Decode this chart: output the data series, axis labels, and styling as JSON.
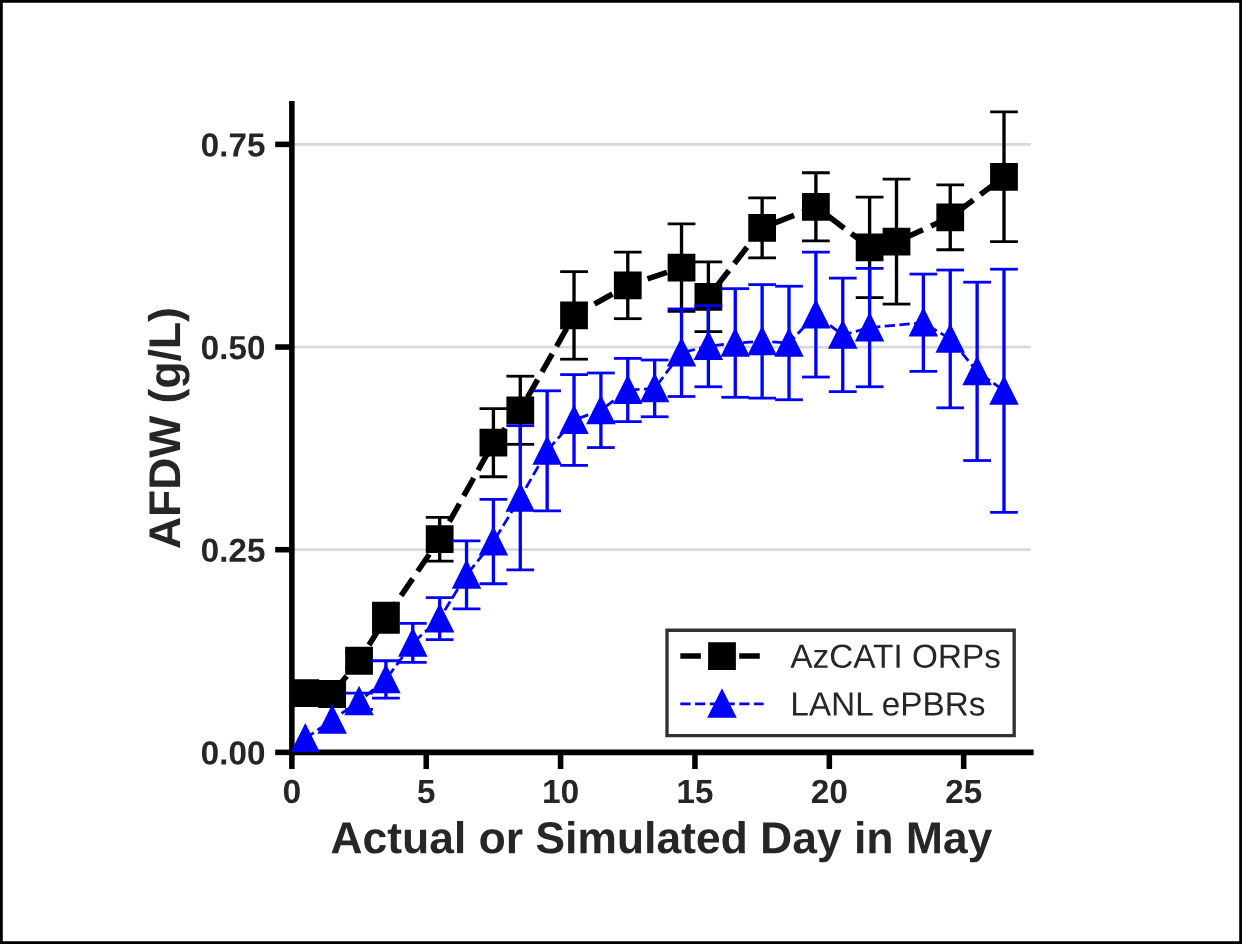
{
  "chart_data": {
    "type": "line",
    "xlabel": "Actual or Simulated Day in May",
    "ylabel": "AFDW (g/L)",
    "xlim": [
      0,
      27.5
    ],
    "xticks": [
      0,
      5,
      10,
      15,
      20,
      25
    ],
    "ylim": [
      0,
      0.8
    ],
    "yticks": [
      {
        "value": 0,
        "label": "0.00"
      },
      {
        "value": 0.25,
        "label": "0.25"
      },
      {
        "value": 0.5,
        "label": "0.50"
      },
      {
        "value": 0.75,
        "label": "0.75"
      }
    ],
    "grid": "y",
    "legend": "bottom right",
    "line_style": "dashed",
    "series": [
      {
        "name": "AzCATI ORPs",
        "color": "#000000",
        "marker": "square",
        "x": [
          0.5,
          1.5,
          2.5,
          3.5,
          5.5,
          7.5,
          8.5,
          10.5,
          12.5,
          14.5,
          15.5,
          17.5,
          19.5,
          21.5,
          22.5,
          24.5,
          26.5
        ],
        "values": [
          0.073,
          0.072,
          0.113,
          0.166,
          0.263,
          0.382,
          0.422,
          0.539,
          0.576,
          0.598,
          0.562,
          0.647,
          0.673,
          0.623,
          0.63,
          0.66,
          0.71
        ],
        "errors": [
          null,
          null,
          0.01,
          0.018,
          0.027,
          0.042,
          0.042,
          0.054,
          0.041,
          0.054,
          0.043,
          0.037,
          0.042,
          0.062,
          0.077,
          0.04,
          0.08
        ]
      },
      {
        "name": "LANL ePBRs",
        "color": "#0000ff",
        "marker": "triangle",
        "x": [
          0.5,
          1.5,
          2.5,
          3.5,
          4.5,
          5.5,
          6.5,
          7.5,
          8.5,
          9.5,
          10.5,
          11.5,
          12.5,
          13.5,
          14.5,
          15.5,
          16.5,
          17.5,
          18.5,
          19.5,
          20.5,
          21.5,
          23.5,
          24.5,
          25.5,
          26.5
        ],
        "values": [
          0.017,
          0.04,
          0.063,
          0.09,
          0.135,
          0.165,
          0.219,
          0.26,
          0.314,
          0.372,
          0.41,
          0.422,
          0.447,
          0.449,
          0.493,
          0.501,
          0.505,
          0.507,
          0.505,
          0.54,
          0.515,
          0.524,
          0.53,
          0.51,
          0.47,
          0.446
        ],
        "errors": [
          null,
          null,
          0.01,
          0.023,
          0.024,
          0.026,
          0.042,
          0.052,
          0.089,
          0.074,
          0.056,
          0.046,
          0.039,
          0.035,
          0.054,
          0.05,
          0.067,
          0.07,
          0.07,
          0.077,
          0.07,
          0.073,
          0.06,
          0.085,
          0.11,
          0.15
        ]
      }
    ]
  }
}
